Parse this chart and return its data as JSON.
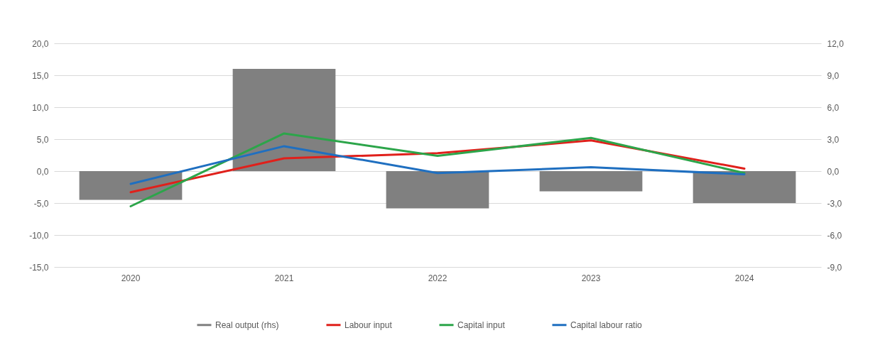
{
  "chart_data": {
    "type": "line",
    "categories": [
      "2020",
      "2021",
      "2022",
      "2023",
      "2024"
    ],
    "series": [
      {
        "name": "Real output (rhs)",
        "type": "bar",
        "axis": "y2",
        "color": "#808080",
        "values": [
          -2.7,
          9.6,
          -3.5,
          -1.9,
          -3.0
        ]
      },
      {
        "name": "Labour input",
        "color": "#e0201b",
        "values": [
          -3.3,
          2.0,
          2.8,
          4.8,
          0.4
        ]
      },
      {
        "name": "Capital input",
        "color": "#2ca54a",
        "values": [
          -5.5,
          5.9,
          2.4,
          5.2,
          -0.3
        ]
      },
      {
        "name": "Capital labour ratio",
        "color": "#1f6fc0",
        "values": [
          -2.0,
          3.9,
          -0.3,
          0.6,
          -0.5
        ]
      }
    ],
    "ylim": [
      -15,
      20
    ],
    "yticks": [
      {
        "value": -15,
        "label": "-15,0"
      },
      {
        "value": -10,
        "label": "-10,0"
      },
      {
        "value": -5,
        "label": "-5,0"
      },
      {
        "value": 0,
        "label": "0,0"
      },
      {
        "value": 5,
        "label": "5,0"
      },
      {
        "value": 10,
        "label": "10,0"
      },
      {
        "value": 15,
        "label": "15,0"
      },
      {
        "value": 20,
        "label": "20,0"
      }
    ],
    "y2lim": [
      -9,
      12
    ],
    "y2ticks": [
      {
        "value": -9,
        "label": "-9,0"
      },
      {
        "value": -6,
        "label": "-6,0"
      },
      {
        "value": -3,
        "label": "-3,0"
      },
      {
        "value": 0,
        "label": "0,0"
      },
      {
        "value": 3,
        "label": "3,0"
      },
      {
        "value": 6,
        "label": "6,0"
      },
      {
        "value": 9,
        "label": "9,0"
      },
      {
        "value": 12,
        "label": "12,0"
      }
    ],
    "grid": "y",
    "legend": "bottom",
    "line_style": "solid"
  }
}
